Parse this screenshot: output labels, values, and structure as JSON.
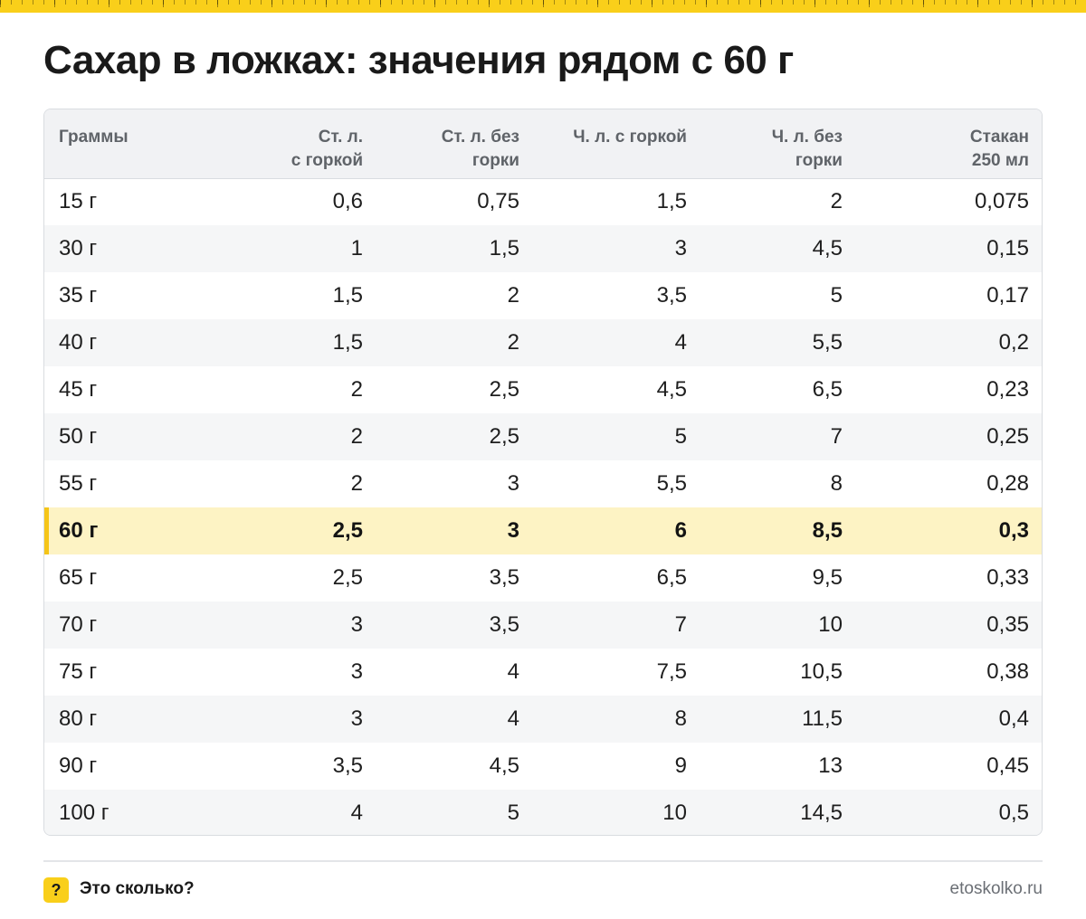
{
  "title": "Сахар в ложках: значения рядом с 60 г",
  "table": {
    "headers": [
      [
        "Граммы",
        ""
      ],
      [
        "Ст. л.",
        "с горкой"
      ],
      [
        "Ст. л. без",
        "горки"
      ],
      [
        "Ч. л. с горкой",
        ""
      ],
      [
        "Ч. л. без",
        "горки"
      ],
      [
        "Стакан",
        "250 мл"
      ]
    ],
    "highlighted_row": "60 г",
    "rows": [
      [
        "15 г",
        "0,6",
        "0,75",
        "1,5",
        "2",
        "0,075"
      ],
      [
        "30 г",
        "1",
        "1,5",
        "3",
        "4,5",
        "0,15"
      ],
      [
        "35 г",
        "1,5",
        "2",
        "3,5",
        "5",
        "0,17"
      ],
      [
        "40 г",
        "1,5",
        "2",
        "4",
        "5,5",
        "0,2"
      ],
      [
        "45 г",
        "2",
        "2,5",
        "4,5",
        "6,5",
        "0,23"
      ],
      [
        "50 г",
        "2",
        "2,5",
        "5",
        "7",
        "0,25"
      ],
      [
        "55 г",
        "2",
        "3",
        "5,5",
        "8",
        "0,28"
      ],
      [
        "60 г",
        "2,5",
        "3",
        "6",
        "8,5",
        "0,3"
      ],
      [
        "65 г",
        "2,5",
        "3,5",
        "6,5",
        "9,5",
        "0,33"
      ],
      [
        "70 г",
        "3",
        "3,5",
        "7",
        "10",
        "0,35"
      ],
      [
        "75 г",
        "3",
        "4",
        "7,5",
        "10,5",
        "0,38"
      ],
      [
        "80 г",
        "3",
        "4",
        "8",
        "11,5",
        "0,4"
      ],
      [
        "90 г",
        "3,5",
        "4,5",
        "9",
        "13",
        "0,45"
      ],
      [
        "100 г",
        "4",
        "5",
        "10",
        "14,5",
        "0,5"
      ]
    ]
  },
  "footer": {
    "badge_icon": "?",
    "brand": "Это сколько?",
    "site": "etoskolko.ru"
  },
  "colors": {
    "accent": "#f9cf1a",
    "highlight_row": "#fdf3c4",
    "header_bg": "#f1f2f4"
  }
}
